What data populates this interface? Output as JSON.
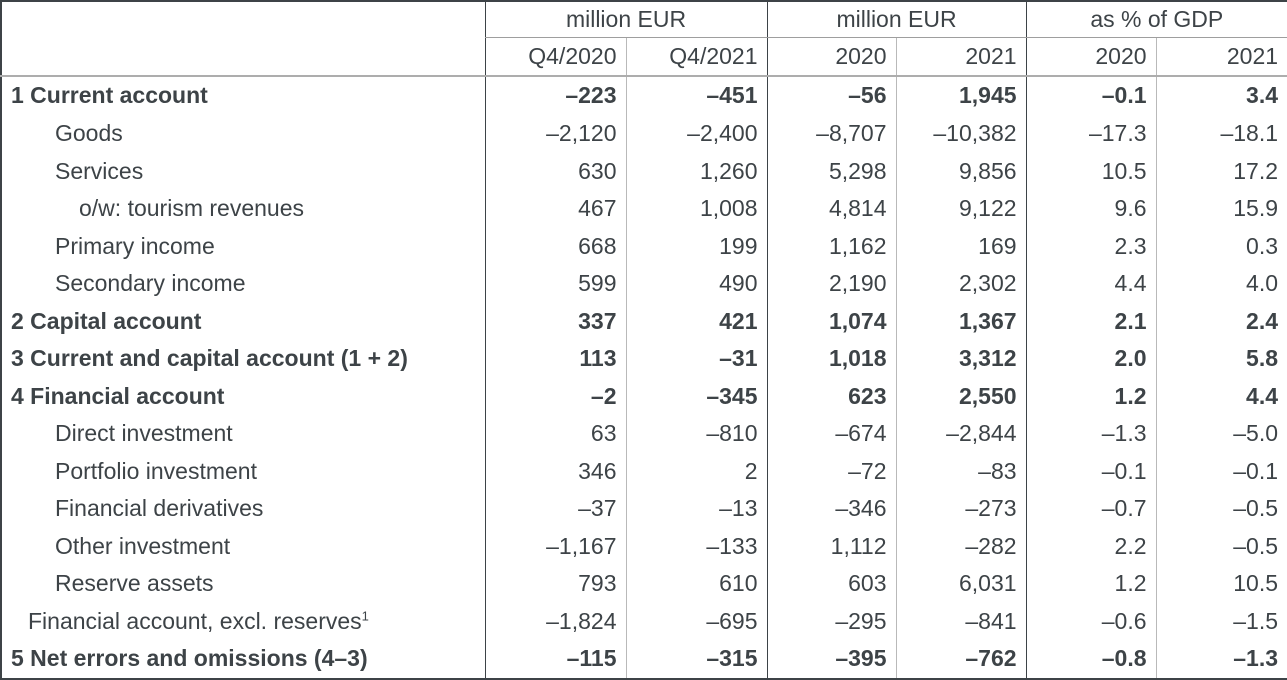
{
  "colors": {
    "text": "#3d4347",
    "border_dark": "#3d4347",
    "border_mid": "#9e9e9e",
    "border_light": "#b9b9b9",
    "header_separator": "#adadad",
    "background": "#ffffff"
  },
  "chart_data": {
    "type": "table",
    "column_groups": [
      {
        "label": "million EUR",
        "columns": [
          "Q4/2020",
          "Q4/2021"
        ]
      },
      {
        "label": "million EUR",
        "columns": [
          "2020",
          "2021"
        ]
      },
      {
        "label": "as % of GDP",
        "columns": [
          "2020",
          "2021"
        ]
      }
    ],
    "value_format": {
      "columns_0_to_3": "integer_with_thousands_separator",
      "columns_4_to_5": "one_decimal",
      "minus_sign": "–"
    },
    "rows": [
      {
        "label": "1 Current account",
        "bold": true,
        "indent": 0,
        "values": [
          -223,
          -451,
          -56,
          1945,
          -0.1,
          3.4
        ]
      },
      {
        "label": "Goods",
        "bold": false,
        "indent": 2,
        "values": [
          -2120,
          -2400,
          -8707,
          -10382,
          -17.3,
          -18.1
        ]
      },
      {
        "label": "Services",
        "bold": false,
        "indent": 2,
        "values": [
          630,
          1260,
          5298,
          9856,
          10.5,
          17.2
        ]
      },
      {
        "label": "o/w: tourism revenues",
        "bold": false,
        "indent": 3,
        "values": [
          467,
          1008,
          4814,
          9122,
          9.6,
          15.9
        ]
      },
      {
        "label": "Primary income",
        "bold": false,
        "indent": 2,
        "values": [
          668,
          199,
          1162,
          169,
          2.3,
          0.3
        ]
      },
      {
        "label": "Secondary income",
        "bold": false,
        "indent": 2,
        "values": [
          599,
          490,
          2190,
          2302,
          4.4,
          4.0
        ]
      },
      {
        "label": "2 Capital account",
        "bold": true,
        "indent": 0,
        "values": [
          337,
          421,
          1074,
          1367,
          2.1,
          2.4
        ]
      },
      {
        "label": "3 Current and capital account (1 + 2)",
        "bold": true,
        "indent": 0,
        "values": [
          113,
          -31,
          1018,
          3312,
          2.0,
          5.8
        ]
      },
      {
        "label": "4 Financial account",
        "bold": true,
        "indent": 0,
        "values": [
          -2,
          -345,
          623,
          2550,
          1.2,
          4.4
        ]
      },
      {
        "label": "Direct investment",
        "bold": false,
        "indent": 2,
        "values": [
          63,
          -810,
          -674,
          -2844,
          -1.3,
          -5.0
        ]
      },
      {
        "label": "Portfolio investment",
        "bold": false,
        "indent": 2,
        "values": [
          346,
          2,
          -72,
          -83,
          -0.1,
          -0.1
        ]
      },
      {
        "label": "Financial derivatives",
        "bold": false,
        "indent": 2,
        "values": [
          -37,
          -13,
          -346,
          -273,
          -0.7,
          -0.5
        ]
      },
      {
        "label": "Other investment",
        "bold": false,
        "indent": 2,
        "values": [
          -1167,
          -133,
          1112,
          -282,
          2.2,
          -0.5
        ]
      },
      {
        "label": "Reserve assets",
        "bold": false,
        "indent": 2,
        "values": [
          793,
          610,
          603,
          6031,
          1.2,
          10.5
        ]
      },
      {
        "label": "Financial account, excl. reserves",
        "bold": false,
        "indent": 1,
        "sup": "1",
        "values": [
          -1824,
          -695,
          -295,
          -841,
          -0.6,
          -1.5
        ]
      },
      {
        "label": "5 Net errors and omissions (4–3)",
        "bold": true,
        "indent": 0,
        "values": [
          -115,
          -315,
          -395,
          -762,
          -0.8,
          -1.3
        ]
      }
    ]
  }
}
